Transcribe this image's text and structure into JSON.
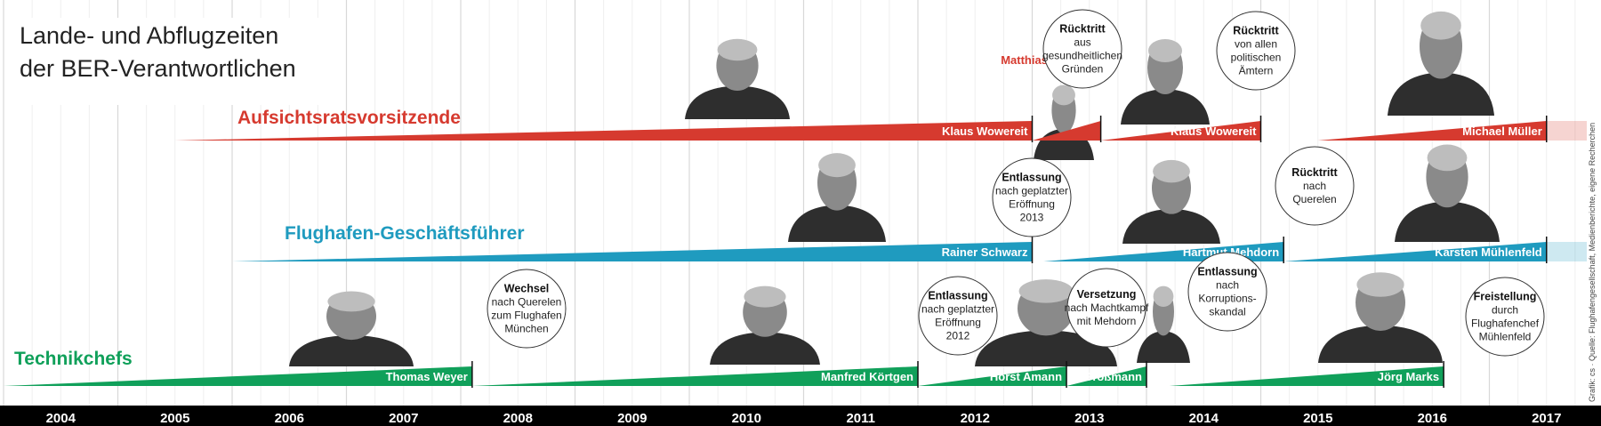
{
  "title_line1": "Lande- und Abflugzeiten",
  "title_line2": "der BER-Verantwortlichen",
  "source": "Grafik: cs · Quelle: Flughafengesellschaft, Medienberichte, eigene Recherchen",
  "colors": {
    "aufsichtsrat": "#d63a2f",
    "geschaeftsfuehrer": "#1f9bbf",
    "technik": "#10a05a",
    "axis_bar": "#000000",
    "grid": "#d8d8d8",
    "portrait": "#3a3a3a"
  },
  "chart_data": {
    "type": "timeline",
    "years": [
      "2004",
      "2005",
      "2006",
      "2007",
      "2008",
      "2009",
      "2010",
      "2011",
      "2012",
      "2013",
      "2014",
      "2015",
      "2016",
      "2017"
    ],
    "x_range": [
      2004,
      2018
    ],
    "grid": true,
    "tracks": [
      {
        "name": "Aufsichtsratsvorsitzende",
        "color_key": "aufsichtsrat",
        "terms": [
          {
            "person": "Klaus Wowereit",
            "start": 2005.5,
            "end": 2013.0,
            "label_above": false,
            "portrait": true
          },
          {
            "person": "Matthias Platzeck",
            "start": 2013.0,
            "end": 2013.6,
            "label_above": true,
            "portrait": true
          },
          {
            "person": "Klaus Wowereit",
            "start": 2013.6,
            "end": 2015.0,
            "label_above": false,
            "portrait": true
          },
          {
            "person": "Michael Müller",
            "start": 2015.5,
            "end": 2017.5,
            "label_above": false,
            "portrait": true,
            "ongoing": true
          }
        ],
        "events": [
          {
            "year": 2013.6,
            "head": "Rücktritt",
            "lines": [
              "aus",
              "gesundheitlichen",
              "Gründen"
            ]
          },
          {
            "year": 2015.0,
            "head": "Rücktritt",
            "lines": [
              "von allen",
              "politischen",
              "Ämtern"
            ]
          }
        ]
      },
      {
        "name": "Flughafen-Geschäftsführer",
        "color_key": "geschaeftsfuehrer",
        "terms": [
          {
            "person": "Rainer Schwarz",
            "start": 2006.0,
            "end": 2013.0,
            "label_above": false,
            "portrait": true
          },
          {
            "person": "Hartmut Mehdorn",
            "start": 2013.1,
            "end": 2015.2,
            "label_above": false,
            "portrait": true
          },
          {
            "person": "Karsten Mühlenfeld",
            "start": 2015.2,
            "end": 2017.5,
            "label_above": false,
            "portrait": true,
            "ongoing": true
          }
        ],
        "events": [
          {
            "year": 2013.0,
            "head": "Entlassung",
            "lines": [
              "nach geplatzter",
              "Eröffnung",
              "2013"
            ]
          },
          {
            "year": 2015.2,
            "head": "Rücktritt",
            "lines": [
              "nach",
              "Querelen"
            ]
          }
        ]
      },
      {
        "name": "Technikchefs",
        "color_key": "technik",
        "terms": [
          {
            "person": "Thomas Weyer",
            "start": 2004.0,
            "end": 2008.1,
            "label_above": false,
            "portrait": true
          },
          {
            "person": "Manfred Körtgen",
            "start": 2008.1,
            "end": 2012.0,
            "label_above": false,
            "portrait": true
          },
          {
            "person": "Horst Amann",
            "start": 2012.0,
            "end": 2013.3,
            "label_above": false,
            "portrait": true
          },
          {
            "person": "J. Großmann",
            "start": 2013.3,
            "end": 2014.0,
            "label_above": false,
            "portrait": true
          },
          {
            "person": "Jörg Marks",
            "start": 2014.2,
            "end": 2016.6,
            "label_above": false,
            "portrait": true
          }
        ],
        "events": [
          {
            "year": 2008.1,
            "head": "Wechsel",
            "lines": [
              "nach Querelen",
              "zum Flughafen",
              "München"
            ]
          },
          {
            "year": 2012.0,
            "head": "Entlassung",
            "lines": [
              "nach geplatzter",
              "Eröffnung",
              "2012"
            ]
          },
          {
            "year": 2013.3,
            "head": "Versetzung",
            "lines": [
              "nach Machtkampf",
              "mit Mehdorn"
            ]
          },
          {
            "year": 2014.0,
            "head": "Entlassung",
            "lines": [
              "nach",
              "Korruptions-",
              "skandal"
            ]
          },
          {
            "year": 2016.6,
            "head": "Freistellung",
            "lines": [
              "durch",
              "Flughafenchef",
              "Mühlenfeld"
            ]
          }
        ]
      }
    ]
  }
}
